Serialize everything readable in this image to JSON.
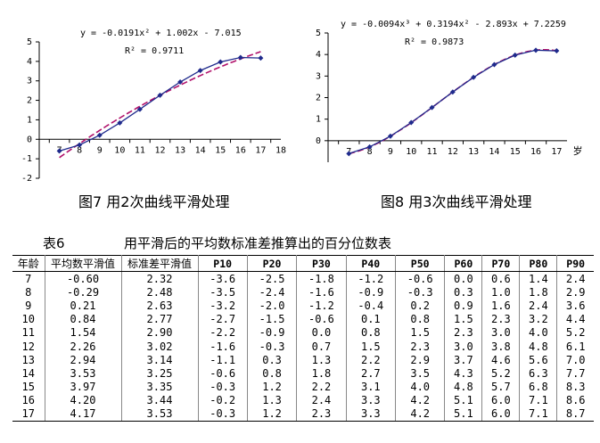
{
  "chart_data": [
    {
      "type": "line",
      "equation": "y = -0.0191x² + 1.002x - 7.015",
      "r2": "R² = 0.9711",
      "x_ticks": [
        "7",
        "8",
        "9",
        "10",
        "11",
        "12",
        "13",
        "14",
        "15",
        "16",
        "17",
        "18"
      ],
      "y_ticks": [
        "-2",
        "-1",
        "0",
        "1",
        "2",
        "3",
        "4",
        "5"
      ],
      "xlim": [
        6,
        18
      ],
      "ylim": [
        -2,
        5
      ],
      "series": [
        {
          "x": [
            7,
            8,
            9,
            10,
            11,
            12,
            13,
            14,
            15,
            16,
            17
          ],
          "values": [
            -0.6,
            -0.29,
            0.21,
            0.84,
            1.54,
            2.26,
            2.94,
            3.53,
            3.97,
            4.2,
            4.17
          ]
        }
      ],
      "trend": {
        "kind": "poly2",
        "coef": [
          -7.015,
          1.002,
          -0.0191
        ]
      }
    },
    {
      "type": "line",
      "equation": "y = -0.0094x³ + 0.3194x² - 2.893x + 7.2259",
      "r2": "R² = 0.9873",
      "x_ticks": [
        "7",
        "8",
        "9",
        "10",
        "11",
        "12",
        "13",
        "14",
        "15",
        "16",
        "17"
      ],
      "x_unit": "岁",
      "y_ticks": [
        "0",
        "1",
        "2",
        "3",
        "4",
        "5"
      ],
      "xlim": [
        6,
        17.5
      ],
      "ylim": [
        -1,
        5
      ],
      "series": [
        {
          "x": [
            7,
            8,
            9,
            10,
            11,
            12,
            13,
            14,
            15,
            16,
            17
          ],
          "values": [
            -0.6,
            -0.29,
            0.21,
            0.84,
            1.54,
            2.26,
            2.94,
            3.53,
            3.97,
            4.2,
            4.17
          ]
        }
      ],
      "trend": {
        "kind": "poly3",
        "coef": [
          7.2259,
          -2.893,
          0.3194,
          -0.0094
        ]
      }
    }
  ],
  "captions": {
    "fig7": "图7    用2次曲线平滑处理",
    "fig8": "图8  用3次曲线平滑处理"
  },
  "table": {
    "number": "表6",
    "title": "用平滑后的平均数标准差推算出的百分位数表",
    "headers": [
      "年龄",
      "平均数平滑值",
      "标准差平滑值",
      "P10",
      "P20",
      "P30",
      "P40",
      "P50",
      "P60",
      "P70",
      "P80",
      "P90"
    ],
    "rows": [
      [
        "7",
        "-0.60",
        "2.32",
        "-3.6",
        "-2.5",
        "-1.8",
        "-1.2",
        "-0.6",
        "0.0",
        "0.6",
        "1.4",
        "2.4"
      ],
      [
        "8",
        "-0.29",
        "2.48",
        "-3.5",
        "-2.4",
        "-1.6",
        "-0.9",
        "-0.3",
        "0.3",
        "1.0",
        "1.8",
        "2.9"
      ],
      [
        "9",
        "0.21",
        "2.63",
        "-3.2",
        "-2.0",
        "-1.2",
        "-0.4",
        "0.2",
        "0.9",
        "1.6",
        "2.4",
        "3.6"
      ],
      [
        "10",
        "0.84",
        "2.77",
        "-2.7",
        "-1.5",
        "-0.6",
        "0.1",
        "0.8",
        "1.5",
        "2.3",
        "3.2",
        "4.4"
      ],
      [
        "11",
        "1.54",
        "2.90",
        "-2.2",
        "-0.9",
        "0.0",
        "0.8",
        "1.5",
        "2.3",
        "3.0",
        "4.0",
        "5.2"
      ],
      [
        "12",
        "2.26",
        "3.02",
        "-1.6",
        "-0.3",
        "0.7",
        "1.5",
        "2.3",
        "3.0",
        "3.8",
        "4.8",
        "6.1"
      ],
      [
        "13",
        "2.94",
        "3.14",
        "-1.1",
        "0.3",
        "1.3",
        "2.2",
        "2.9",
        "3.7",
        "4.6",
        "5.6",
        "7.0"
      ],
      [
        "14",
        "3.53",
        "3.25",
        "-0.6",
        "0.8",
        "1.8",
        "2.7",
        "3.5",
        "4.3",
        "5.2",
        "6.3",
        "7.7"
      ],
      [
        "15",
        "3.97",
        "3.35",
        "-0.3",
        "1.2",
        "2.2",
        "3.1",
        "4.0",
        "4.8",
        "5.7",
        "6.8",
        "8.3"
      ],
      [
        "16",
        "4.20",
        "3.44",
        "-0.2",
        "1.3",
        "2.4",
        "3.3",
        "4.2",
        "5.1",
        "6.0",
        "7.1",
        "8.6"
      ],
      [
        "17",
        "4.17",
        "3.53",
        "-0.3",
        "1.2",
        "2.3",
        "3.3",
        "4.2",
        "5.1",
        "6.0",
        "7.1",
        "8.7"
      ]
    ]
  },
  "colors": {
    "series": "#1f2a8c",
    "trend": "#b0106a",
    "axis": "#000000"
  }
}
